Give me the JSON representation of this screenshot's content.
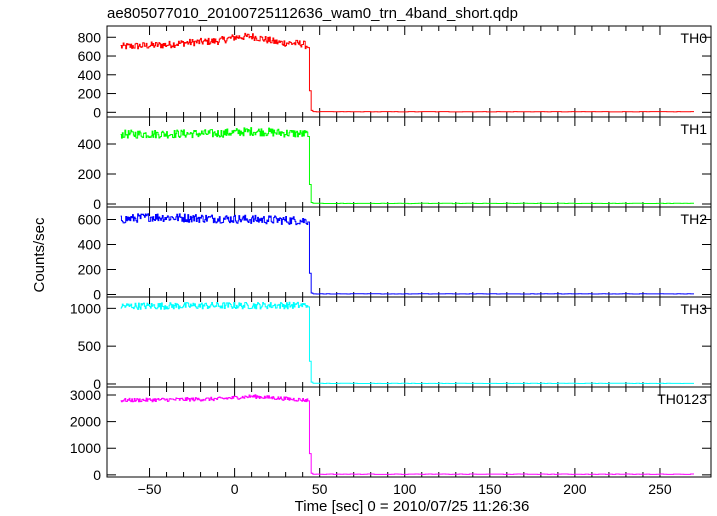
{
  "title": "ae805077010_20100725112636_wam0_trn_4band_short.qdp",
  "xlabel": "Time [sec] 0 = 2010/07/25 11:26:36",
  "ylabel": "Counts/sec",
  "chart_data": {
    "type": "line",
    "shared_x_axis": {
      "xlim": [
        -75,
        280
      ],
      "ticks": [
        -50,
        0,
        50,
        100,
        150,
        200,
        250
      ],
      "tick_labels": [
        "−50",
        "0",
        "50",
        "100",
        "150",
        "200",
        "250"
      ]
    },
    "drop_time": 43,
    "data_x_range": [
      -67,
      271
    ],
    "panels": [
      {
        "name": "TH0",
        "color": "#ff0000",
        "ylim": [
          -50,
          920
        ],
        "yticks": [
          0,
          200,
          400,
          600,
          800
        ],
        "level_profile": [
          [
            -67,
            700
          ],
          [
            -40,
            720
          ],
          [
            -30,
            740
          ],
          [
            -10,
            760
          ],
          [
            0,
            800
          ],
          [
            10,
            810
          ],
          [
            25,
            745
          ],
          [
            40,
            730
          ],
          [
            43,
            700
          ]
        ],
        "noise": 38,
        "tail": [
          [
            43,
            690
          ],
          [
            44,
            230
          ],
          [
            45,
            20
          ]
        ],
        "after": 6
      },
      {
        "name": "TH1",
        "color": "#00ff00",
        "ylim": [
          -20,
          580
        ],
        "yticks": [
          0,
          200,
          400
        ],
        "level_profile": [
          [
            -67,
            465
          ],
          [
            -10,
            470
          ],
          [
            10,
            485
          ],
          [
            43,
            465
          ]
        ],
        "noise": 28,
        "tail": [
          [
            43,
            450
          ],
          [
            44,
            130
          ],
          [
            45,
            10
          ]
        ],
        "after": 4
      },
      {
        "name": "TH2",
        "color": "#0000ff",
        "ylim": [
          -20,
          700
        ],
        "yticks": [
          0,
          200,
          400,
          600
        ],
        "level_profile": [
          [
            -67,
            600
          ],
          [
            -50,
            620
          ],
          [
            43,
            590
          ]
        ],
        "noise": 35,
        "tail": [
          [
            43,
            580
          ],
          [
            44,
            170
          ],
          [
            45,
            12
          ]
        ],
        "after": 5
      },
      {
        "name": "TH3",
        "color": "#00ffff",
        "ylim": [
          -40,
          1150
        ],
        "yticks": [
          0,
          500,
          1000
        ],
        "level_profile": [
          [
            -67,
            1030
          ],
          [
            43,
            1040
          ]
        ],
        "noise": 45,
        "tail": [
          [
            43,
            1020
          ],
          [
            44,
            300
          ],
          [
            45,
            25
          ]
        ],
        "after": 8
      },
      {
        "name": "TH0123",
        "color": "#ff00ff",
        "ylim": [
          -80,
          3300
        ],
        "yticks": [
          0,
          1000,
          2000,
          3000
        ],
        "level_profile": [
          [
            -67,
            2800
          ],
          [
            -10,
            2850
          ],
          [
            10,
            2950
          ],
          [
            43,
            2800
          ]
        ],
        "noise": 70,
        "tail": [
          [
            43,
            2780
          ],
          [
            44,
            800
          ],
          [
            45,
            60
          ]
        ],
        "after": 25
      }
    ]
  }
}
